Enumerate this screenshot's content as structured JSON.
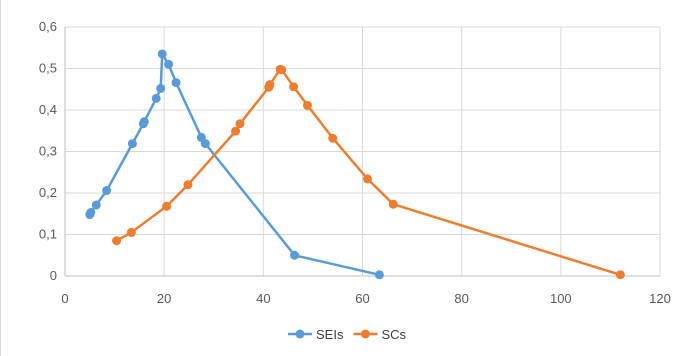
{
  "chart_data": {
    "type": "scatter",
    "title": "",
    "xlabel": "",
    "ylabel": "",
    "xlim": [
      0,
      120
    ],
    "ylim": [
      0,
      0.6
    ],
    "x_ticks": [
      0,
      20,
      40,
      60,
      80,
      100,
      120
    ],
    "y_ticks": [
      0,
      0.1,
      0.2,
      0.3,
      0.4,
      0.5,
      0.6
    ],
    "x_tick_labels": [
      "0",
      "20",
      "40",
      "60",
      "80",
      "100",
      "120"
    ],
    "y_tick_labels": [
      "0",
      "0,1",
      "0,2",
      "0,3",
      "0,4",
      "0,5",
      "0,6"
    ],
    "grid": true,
    "legend_position": "bottom",
    "series": [
      {
        "name": "SEIs",
        "color": "#5b9bd5",
        "points": [
          [
            5,
            0.148
          ],
          [
            5.2,
            0.153
          ],
          [
            6.3,
            0.171
          ],
          [
            8.4,
            0.206
          ],
          [
            13.6,
            0.319
          ],
          [
            15.8,
            0.367
          ],
          [
            16,
            0.372
          ],
          [
            18.4,
            0.428
          ],
          [
            19.3,
            0.452
          ],
          [
            19.6,
            0.535
          ],
          [
            20.9,
            0.51
          ],
          [
            22.4,
            0.466
          ],
          [
            27.5,
            0.334
          ],
          [
            28.3,
            0.319
          ],
          [
            46.3,
            0.05
          ],
          [
            63.4,
            0.003
          ]
        ]
      },
      {
        "name": "SCs",
        "color": "#ed7d31",
        "points": [
          [
            10.4,
            0.085
          ],
          [
            13.4,
            0.105
          ],
          [
            20.5,
            0.168
          ],
          [
            24.8,
            0.22
          ],
          [
            34.4,
            0.349
          ],
          [
            35.3,
            0.367
          ],
          [
            41.1,
            0.455
          ],
          [
            41.3,
            0.461
          ],
          [
            43.4,
            0.498
          ],
          [
            43.7,
            0.497
          ],
          [
            46.1,
            0.456
          ],
          [
            48.9,
            0.411
          ],
          [
            54,
            0.332
          ],
          [
            61,
            0.234
          ],
          [
            66.2,
            0.173
          ],
          [
            112,
            0.003
          ]
        ]
      }
    ]
  }
}
